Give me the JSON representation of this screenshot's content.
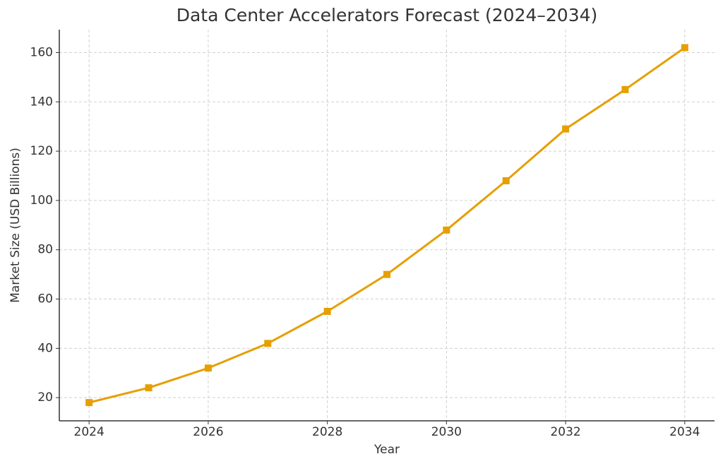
{
  "chart_data": {
    "type": "line",
    "title": "Data Center Accelerators Forecast (2024–2034)",
    "x_label": "Year",
    "y_label": "Market Size (USD Billions)",
    "x": [
      2024,
      2025,
      2026,
      2027,
      2028,
      2029,
      2030,
      2031,
      2032,
      2033,
      2034
    ],
    "series": [
      {
        "name": "Market Size",
        "color": "#e69f00",
        "values": [
          18,
          24,
          32,
          42,
          55,
          70,
          88,
          108,
          129,
          145,
          162
        ]
      }
    ],
    "xlim": [
      2023.5,
      2034.5
    ],
    "xticks": [
      2024,
      2026,
      2028,
      2030,
      2032,
      2034
    ],
    "ylim": [
      10.6,
      169.3
    ],
    "yticks": [
      20,
      40,
      60,
      80,
      100,
      120,
      140,
      160
    ],
    "grid": true,
    "marker": "square"
  }
}
